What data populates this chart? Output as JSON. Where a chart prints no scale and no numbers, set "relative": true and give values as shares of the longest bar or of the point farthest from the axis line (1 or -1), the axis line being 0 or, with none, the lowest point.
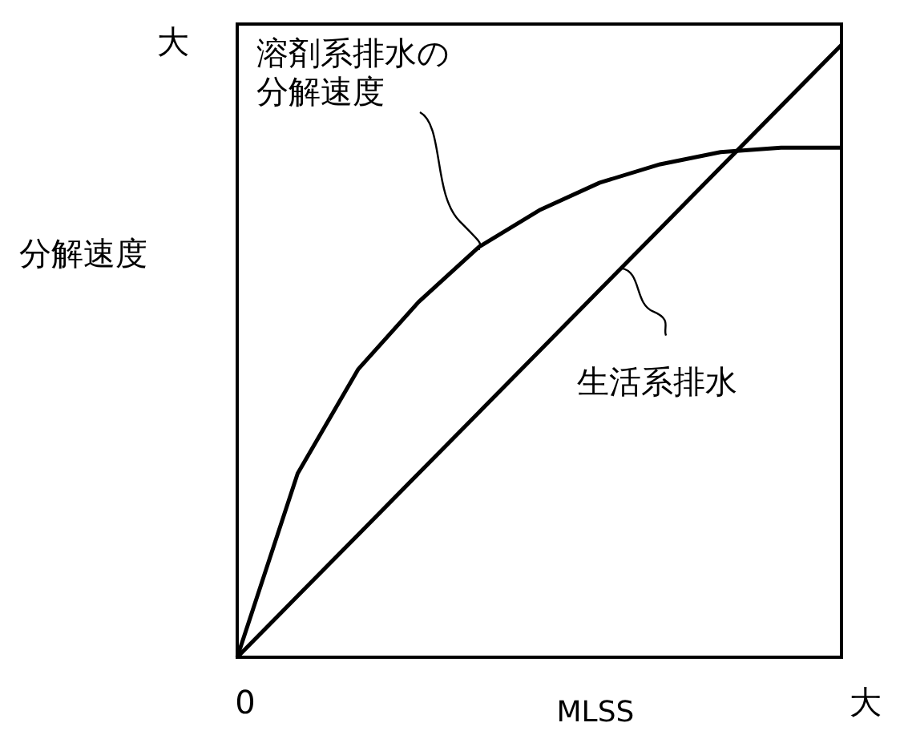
{
  "chart_data": {
    "type": "line",
    "relative": true,
    "xlabel": "MLSS",
    "ylabel": "分解速度",
    "annotations": [
      "大",
      "0",
      "大"
    ],
    "categories": [
      null,
      null,
      null,
      null,
      null,
      null,
      null,
      null,
      null,
      null,
      null
    ],
    "series": [
      {
        "name": "溶剤系排水の分解速度",
        "color": "#000000",
        "values": [
          0,
          0.3,
          0.47,
          0.58,
          0.67,
          0.73,
          0.775,
          0.805,
          0.825,
          0.832,
          0.832
        ]
      },
      {
        "name": "生活系排水",
        "color": "#000000",
        "values": [
          0,
          0.1,
          0.2,
          0.3,
          0.4,
          0.5,
          0.6,
          0.7,
          0.8,
          0.9,
          1
        ]
      }
    ]
  }
}
